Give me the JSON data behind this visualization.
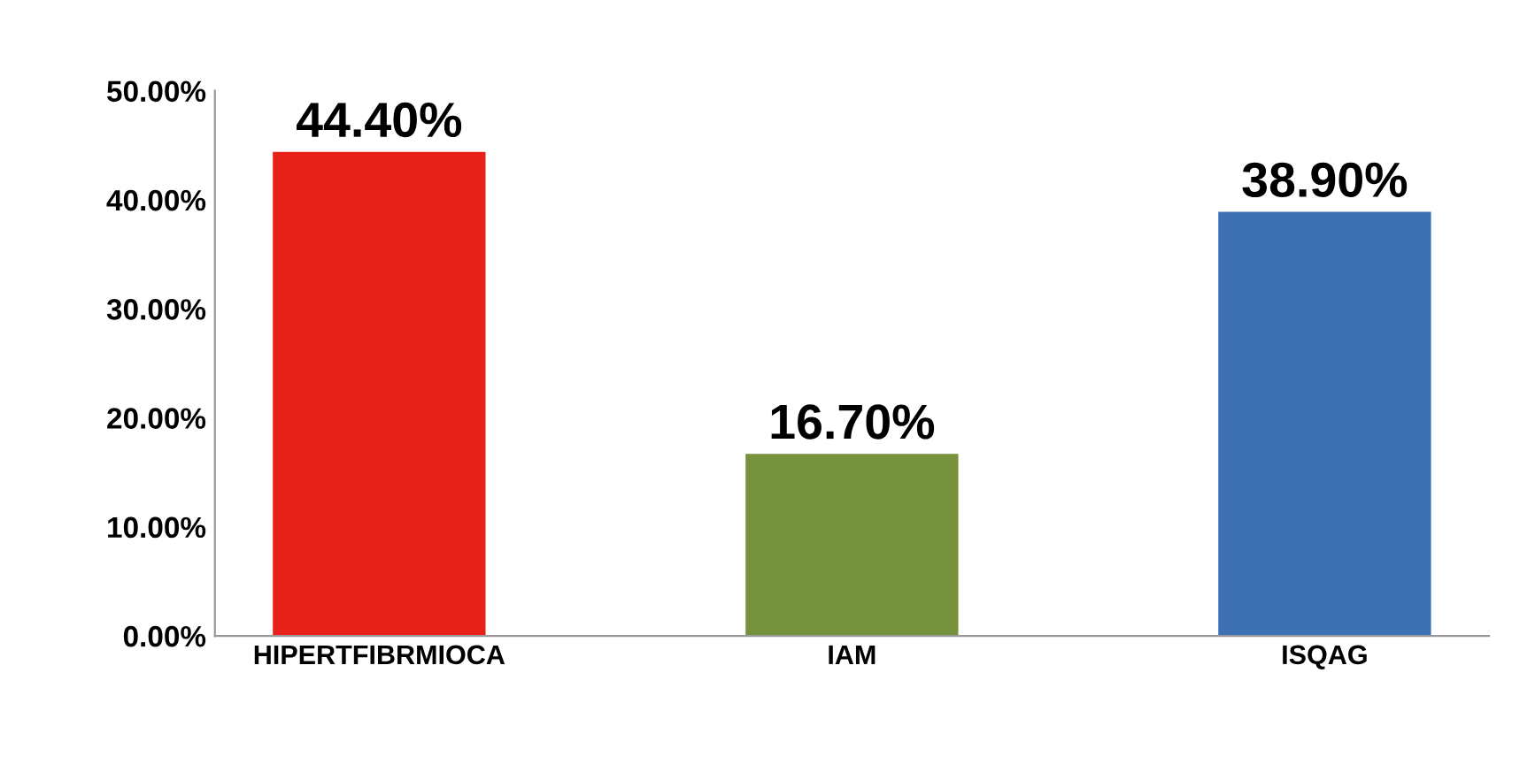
{
  "chart_data": {
    "type": "bar",
    "categories": [
      "HIPERTFIBRMIOCA",
      "IAM",
      "ISQAG"
    ],
    "values": [
      44.4,
      16.7,
      38.9
    ],
    "colors": [
      "#e8201a",
      "#76923c",
      "#3d6fb3"
    ],
    "value_labels": [
      "44.40%",
      "16.70%",
      "38.90%"
    ],
    "ylim": [
      0,
      50
    ],
    "yticks": [
      {
        "value": 0,
        "label": "0.00%"
      },
      {
        "value": 10,
        "label": "10.00%"
      },
      {
        "value": 20,
        "label": "20.00%"
      },
      {
        "value": 30,
        "label": "30.00%"
      },
      {
        "value": 40,
        "label": "40.00%"
      },
      {
        "value": 50,
        "label": "50.00%"
      }
    ],
    "grid": false
  }
}
